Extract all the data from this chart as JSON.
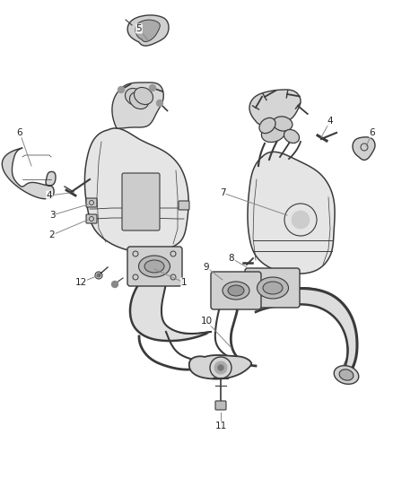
{
  "background_color": "#ffffff",
  "line_color": "#3a3a3a",
  "figsize": [
    4.38,
    5.33
  ],
  "dpi": 100,
  "callout_fs": 7.5,
  "callout_color": "#222222",
  "leader_color": "#888888"
}
